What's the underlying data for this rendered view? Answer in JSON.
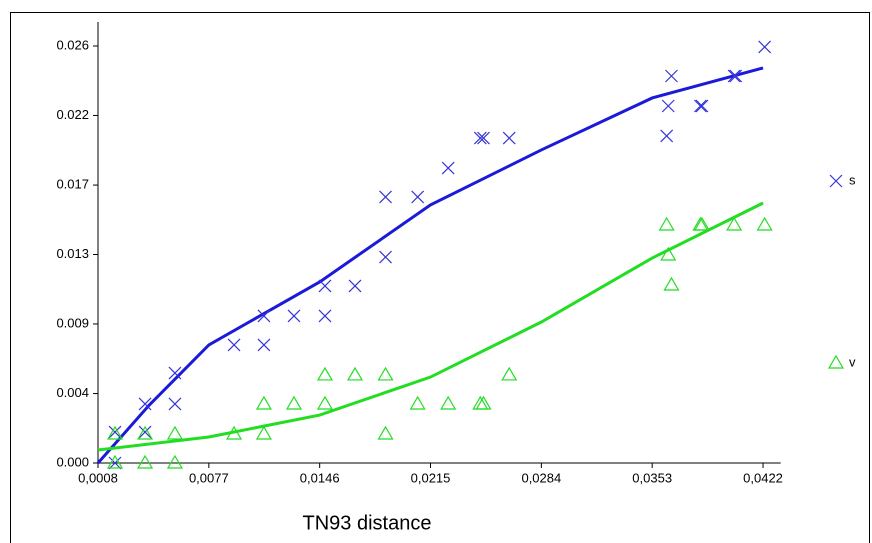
{
  "chart_data": {
    "type": "scatter",
    "x_label": "TN93 distance",
    "xlim": [
      0.0008,
      0.0433
    ],
    "ylim": [
      0,
      0.0275
    ],
    "xticks": [
      {
        "value": 0.0008,
        "label": "0,0008"
      },
      {
        "value": 0.0077,
        "label": "0,0077"
      },
      {
        "value": 0.0146,
        "label": "0,0146"
      },
      {
        "value": 0.0215,
        "label": "0,0215"
      },
      {
        "value": 0.0284,
        "label": "0,0284"
      },
      {
        "value": 0.0353,
        "label": "0,0353"
      },
      {
        "value": 0.0422,
        "label": "0,0422"
      }
    ],
    "yticks": [
      {
        "value": 0,
        "label": "0.000"
      },
      {
        "value": 0.00433,
        "label": "0.004"
      },
      {
        "value": 0.00867,
        "label": "0.009"
      },
      {
        "value": 0.013,
        "label": "0.013"
      },
      {
        "value": 0.01733,
        "label": "0.017"
      },
      {
        "value": 0.02167,
        "label": "0.022"
      },
      {
        "value": 0.026,
        "label": "0.026"
      }
    ],
    "series": [
      {
        "name": "s",
        "marker": "x",
        "color": "#3535d8",
        "x": [
          0.00186,
          0.00186,
          0.00373,
          0.00373,
          0.00559,
          0.00559,
          0.00927,
          0.01113,
          0.01113,
          0.013,
          0.01493,
          0.01493,
          0.0168,
          0.0187,
          0.0187,
          0.0207,
          0.0226,
          0.0246,
          0.0248,
          0.0264,
          0.0362,
          0.0363,
          0.0365,
          0.0383,
          0.0384,
          0.0404,
          0.0405,
          0.0423
        ],
        "values": [
          0,
          0.00193,
          0.00193,
          0.00368,
          0.00368,
          0.00561,
          0.00736,
          0.00736,
          0.00917,
          0.00917,
          0.00917,
          0.01104,
          0.01104,
          0.01284,
          0.01659,
          0.01659,
          0.01839,
          0.02026,
          0.02026,
          0.02026,
          0.02039,
          0.02226,
          0.02413,
          0.02226,
          0.02226,
          0.02413,
          0.02413,
          0.02594
        ],
        "fit": {
          "color": "#1a1ad8",
          "x": [
            0.0008,
            0.004,
            0.0077,
            0.0146,
            0.0215,
            0.0284,
            0.0353,
            0.0422
          ],
          "values": [
            0,
            0.00362,
            0.00736,
            0.01129,
            0.01609,
            0.01952,
            0.02276,
            0.02463
          ]
        }
      },
      {
        "name": "v",
        "marker": "triangle",
        "color": "#22dd22",
        "x": [
          0.00186,
          0.00186,
          0.00373,
          0.00373,
          0.00559,
          0.00559,
          0.00927,
          0.01113,
          0.01113,
          0.013,
          0.01493,
          0.01493,
          0.0168,
          0.0187,
          0.0187,
          0.0207,
          0.0226,
          0.0246,
          0.0248,
          0.0264,
          0.0362,
          0.0363,
          0.0365,
          0.0383,
          0.0384,
          0.0404,
          0.0423
        ],
        "values": [
          0,
          0.00181,
          0,
          0.00181,
          0,
          0.00181,
          0.00181,
          0.00181,
          0.00368,
          0.00368,
          0.00549,
          0.00368,
          0.00549,
          0.00549,
          0.00181,
          0.00368,
          0.00368,
          0.00368,
          0.00368,
          0.00549,
          0.01484,
          0.01297,
          0.0111,
          0.01484,
          0.01484,
          0.01484,
          0.01484
        ],
        "fit": {
          "color": "#22dd22",
          "x": [
            0.0008,
            0.0077,
            0.0146,
            0.0215,
            0.0284,
            0.0353,
            0.0422
          ],
          "values": [
            0.00081,
            0.00162,
            0.00299,
            0.00536,
            0.00879,
            0.01278,
            0.01621
          ]
        }
      }
    ]
  }
}
